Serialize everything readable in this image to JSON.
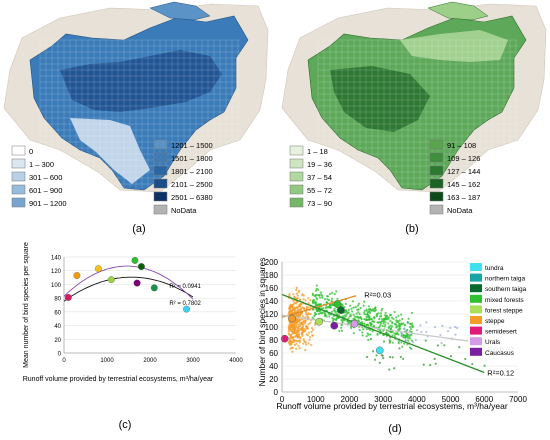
{
  "maps": [
    {
      "panel_label": "(a)",
      "legend_left": [
        "0",
        "1 – 300",
        "301 – 600",
        "601 – 900",
        "901 – 1200"
      ],
      "legend_left_colors": [
        "#ffffff",
        "#dbe7f3",
        "#b9d1e8",
        "#97bbdc",
        "#77a5cf"
      ],
      "legend_right": [
        "1201 – 1500",
        "1501 – 1800",
        "1801 – 2100",
        "2101 – 2500",
        "2501 – 6380",
        "NoData"
      ],
      "legend_right_colors": [
        "#5b93c6",
        "#3f7cb6",
        "#2a66a4",
        "#1b4f8a",
        "#0f3266",
        "#b3b3b3"
      ]
    },
    {
      "panel_label": "(b)",
      "legend_left": [
        "1 – 18",
        "19 – 36",
        "37 – 54",
        "55 – 72",
        "73 – 90"
      ],
      "legend_left_colors": [
        "#e6f2de",
        "#cde6c0",
        "#b0d8a0",
        "#92c882",
        "#74b765"
      ],
      "legend_right": [
        "91 – 108",
        "109 – 126",
        "127 – 144",
        "145 – 162",
        "163 – 187",
        "NoData"
      ],
      "legend_right_colors": [
        "#5aa34f",
        "#3f8f3d",
        "#2b7a30",
        "#1b6325",
        "#0e4a19",
        "#b3b3b3"
      ]
    }
  ],
  "chart_data": [
    {
      "type": "scatter",
      "panel_label": "(c)",
      "xlabel": "Runoff volume provided by terrestrial ecosystems, m³/ha/year",
      "ylabel": "Mean number of bird species per square",
      "xlim": [
        0,
        4000
      ],
      "ylim": [
        0,
        140
      ],
      "xticks": [
        "0",
        "1000",
        "2000",
        "3000",
        "4000"
      ],
      "yticks": [
        "0",
        "20",
        "40",
        "60",
        "80",
        "100",
        "120",
        "140"
      ],
      "points": [
        {
          "x": 1650,
          "y": 135,
          "color": "#33bb33"
        },
        {
          "x": 1800,
          "y": 126,
          "color": "#006400"
        },
        {
          "x": 800,
          "y": 123,
          "color": "#f2c21f"
        },
        {
          "x": 300,
          "y": 113,
          "color": "#f39c12"
        },
        {
          "x": 1100,
          "y": 107,
          "color": "#9ad43c"
        },
        {
          "x": 1700,
          "y": 102,
          "color": "#7a007a"
        },
        {
          "x": 2100,
          "y": 95,
          "color": "#1f8f4f"
        },
        {
          "x": 100,
          "y": 81,
          "color": "#d81b60"
        },
        {
          "x": 2850,
          "y": 64,
          "color": "#3fd0f0"
        }
      ],
      "trendlines": [
        {
          "label": "R² = 0.0941",
          "color": "#111111",
          "coef": [
            75.6,
            0.0446,
            -1.42e-05
          ]
        },
        {
          "label": "R² = 0.7802",
          "color": "#8a4bb0",
          "coef": [
            82.8,
            0.06,
            -2.05e-05
          ]
        }
      ]
    },
    {
      "type": "scatter",
      "panel_label": "(d)",
      "xlabel": "Runoff volume provided by terrestrial ecosystems, m³/ha/year",
      "ylabel": "Number of bird species in squares",
      "xlim": [
        0,
        7000
      ],
      "ylim": [
        0,
        200
      ],
      "xticks": [
        "0",
        "1000",
        "2000",
        "3000",
        "4000",
        "5000",
        "6000",
        "7000"
      ],
      "yticks": [
        "0",
        "20",
        "40",
        "60",
        "80",
        "100",
        "120",
        "140",
        "160",
        "180",
        "200"
      ],
      "legend": [
        {
          "name": "tundra",
          "color": "#3fe0f0"
        },
        {
          "name": "northern taiga",
          "color": "#1aa6a6"
        },
        {
          "name": "southern taiga",
          "color": "#0b6b2e"
        },
        {
          "name": "mixed forests",
          "color": "#2ec02e"
        },
        {
          "name": "forest steppe",
          "color": "#a8e05a"
        },
        {
          "name": "steppe",
          "color": "#f39c2a"
        },
        {
          "name": "semidesert",
          "color": "#e0197a"
        },
        {
          "name": "Urals",
          "color": "#d59be6"
        },
        {
          "name": "Caucasus",
          "color": "#7a1fa0"
        }
      ],
      "means": [
        {
          "x": 2900,
          "y": 64,
          "color": "#3fe0f0"
        },
        {
          "x": 1750,
          "y": 126,
          "color": "#0b6b2e"
        },
        {
          "x": 1650,
          "y": 135,
          "color": "#2ec02e"
        },
        {
          "x": 1100,
          "y": 108,
          "color": "#a8e05a"
        },
        {
          "x": 300,
          "y": 113,
          "color": "#f39c2a"
        },
        {
          "x": 80,
          "y": 82,
          "color": "#e0197a"
        },
        {
          "x": 2150,
          "y": 105,
          "color": "#d59be6"
        },
        {
          "x": 1550,
          "y": 102,
          "color": "#7a1fa0"
        }
      ],
      "trendlines": [
        {
          "label": "R²=0.03",
          "color": "#e08a2a",
          "x": [
            0,
            2200
          ],
          "y": [
            115,
            148
          ]
        },
        {
          "label": "R²=0.03",
          "color": "#c8c8c8",
          "x": [
            0,
            6000
          ],
          "y": [
            118,
            75
          ]
        },
        {
          "label": "R²=0.12",
          "color": "#2a8f2a",
          "x": [
            0,
            6000
          ],
          "y": [
            150,
            30
          ]
        }
      ]
    }
  ]
}
